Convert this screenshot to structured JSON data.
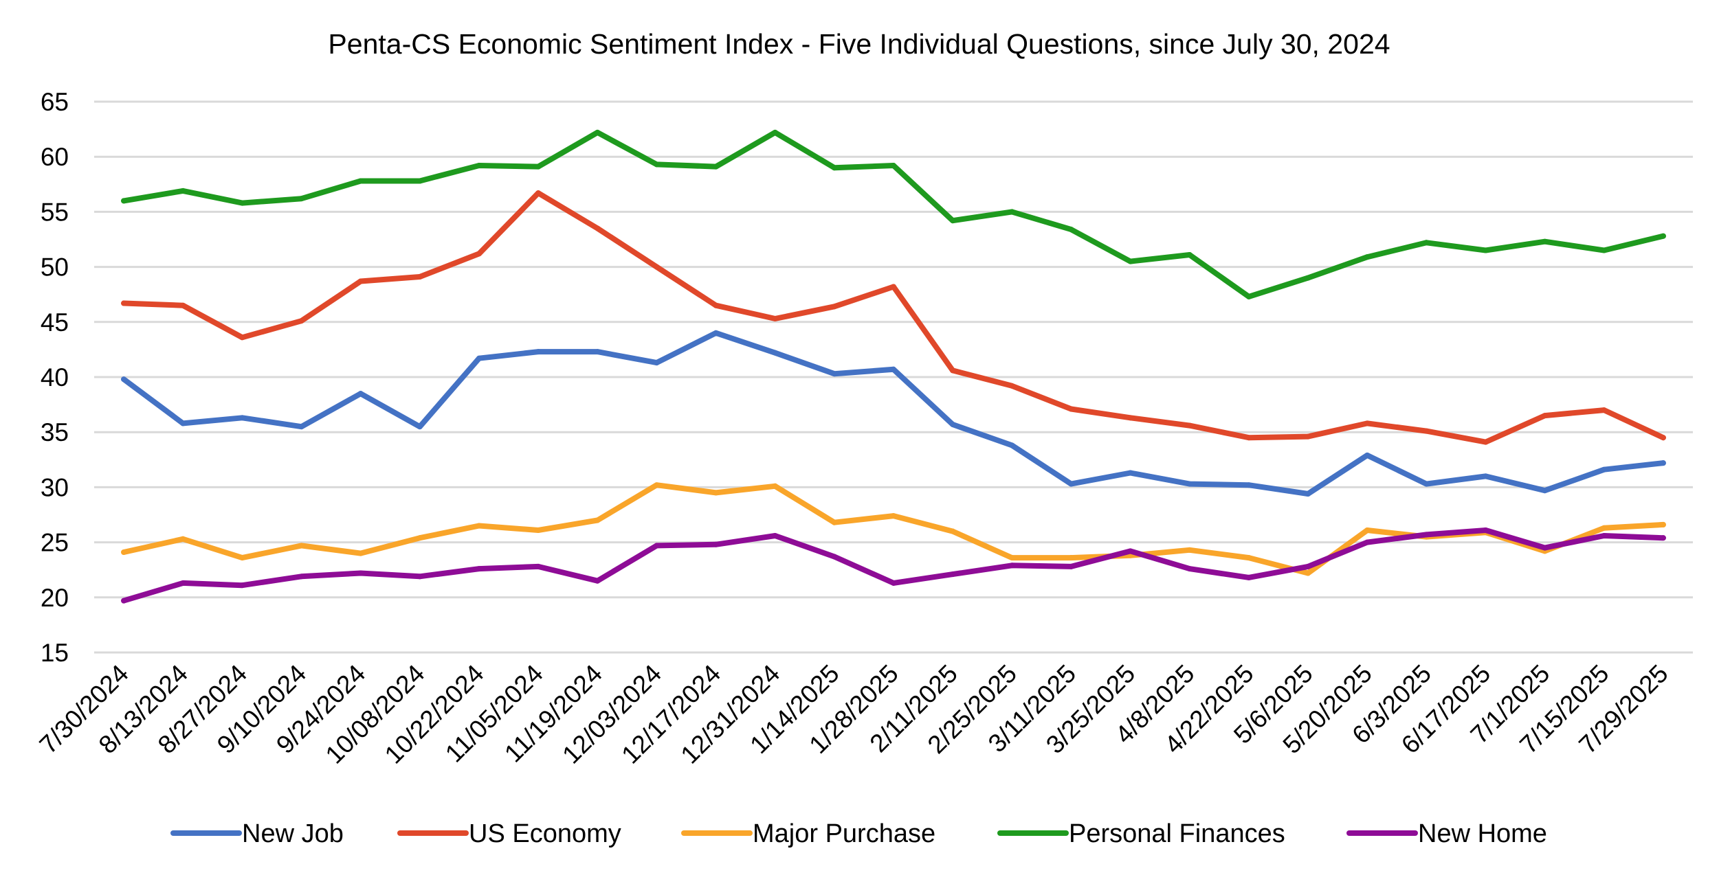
{
  "chart_data": {
    "type": "line",
    "title": "Penta-CS Economic Sentiment Index - Five Individual Questions, since July 30, 2024",
    "xlabel": "",
    "ylabel": "",
    "ylim": [
      15,
      65
    ],
    "yticks": [
      15,
      20,
      25,
      30,
      35,
      40,
      45,
      50,
      55,
      60,
      65
    ],
    "grid": true,
    "legend_position": "bottom",
    "categories": [
      "7/30/2024",
      "8/13/2024",
      "8/27/2024",
      "9/10/2024",
      "9/24/2024",
      "10/08/2024",
      "10/22/2024",
      "11/05/2024",
      "11/19/2024",
      "12/03/2024",
      "12/17/2024",
      "12/31/2024",
      "1/14/2025",
      "1/28/2025",
      "2/11/2025",
      "2/25/2025",
      "3/11/2025",
      "3/25/2025",
      "4/8/2025",
      "4/22/2025",
      "5/6/2025",
      "5/20/2025",
      "6/3/2025",
      "6/17/2025",
      "7/1/2025",
      "7/15/2025",
      "7/29/2025"
    ],
    "series": [
      {
        "name": "New Job",
        "color": "#4472C4",
        "values": [
          39.8,
          35.8,
          36.3,
          35.5,
          38.5,
          35.5,
          41.7,
          42.3,
          42.3,
          41.3,
          44.0,
          42.2,
          40.3,
          40.7,
          35.7,
          33.8,
          30.3,
          31.3,
          30.3,
          30.2,
          29.4,
          32.9,
          30.3,
          31.0,
          29.7,
          31.6,
          32.2
        ]
      },
      {
        "name": "US Economy",
        "color": "#E0482A",
        "values": [
          46.7,
          46.5,
          43.6,
          45.1,
          48.7,
          49.1,
          51.2,
          56.7,
          53.5,
          50.0,
          46.5,
          45.3,
          46.4,
          48.2,
          40.6,
          39.2,
          37.1,
          36.3,
          35.6,
          34.5,
          34.6,
          35.8,
          35.1,
          34.1,
          36.5,
          37.0,
          34.5
        ]
      },
      {
        "name": "Major Purchase",
        "color": "#F9A52A",
        "values": [
          24.1,
          25.3,
          23.6,
          24.7,
          24.0,
          25.4,
          26.5,
          26.1,
          27.0,
          30.2,
          29.5,
          30.1,
          26.8,
          27.4,
          26.0,
          23.6,
          23.6,
          23.8,
          24.3,
          23.6,
          22.2,
          26.1,
          25.5,
          25.9,
          24.2,
          26.3,
          26.6
        ]
      },
      {
        "name": "Personal Finances",
        "color": "#1E9A1E",
        "values": [
          56.0,
          56.9,
          55.8,
          56.2,
          57.8,
          57.8,
          59.2,
          59.1,
          62.2,
          59.3,
          59.1,
          62.2,
          59.0,
          59.2,
          54.2,
          55.0,
          53.4,
          50.5,
          51.1,
          47.3,
          49.0,
          50.9,
          52.2,
          51.5,
          52.3,
          51.5,
          52.8
        ]
      },
      {
        "name": "New Home",
        "color": "#8E0C96",
        "values": [
          19.7,
          21.3,
          21.1,
          21.9,
          22.2,
          21.9,
          22.6,
          22.8,
          21.5,
          24.7,
          24.8,
          25.6,
          23.7,
          21.3,
          22.1,
          22.9,
          22.8,
          24.2,
          22.6,
          21.8,
          22.8,
          25.0,
          25.7,
          26.1,
          24.5,
          25.6,
          25.4
        ]
      }
    ]
  }
}
